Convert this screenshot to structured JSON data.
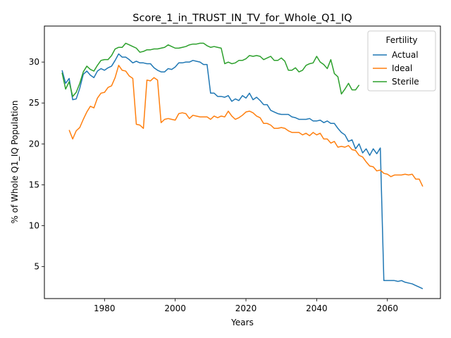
{
  "chart_data": {
    "type": "line",
    "title": "Score_1_in_TRUST_IN_TV_for_Whole_Q1_IQ",
    "xlabel": "Years",
    "ylabel": "% of Whole Q1_IQ Population",
    "xlim": [
      1963,
      2075
    ],
    "ylim": [
      1.1,
      34.4
    ],
    "xticks": [
      1980,
      2000,
      2020,
      2040,
      2060
    ],
    "yticks": [
      5,
      10,
      15,
      20,
      25,
      30
    ],
    "grid": false,
    "legend": {
      "title": "Fertility",
      "placement": "upper right"
    },
    "series": [
      {
        "name": "Actual",
        "color": "#1f77b4",
        "x": [
          1968,
          1969,
          1970,
          1971,
          1972,
          1973,
          1974,
          1975,
          1976,
          1977,
          1978,
          1979,
          1980,
          1981,
          1982,
          1983,
          1984,
          1985,
          1986,
          1987,
          1988,
          1989,
          1990,
          1991,
          1992,
          1993,
          1994,
          1995,
          1996,
          1997,
          1998,
          1999,
          2000,
          2001,
          2002,
          2003,
          2004,
          2005,
          2006,
          2007,
          2008,
          2009,
          2010,
          2011,
          2012,
          2013,
          2014,
          2015,
          2016,
          2017,
          2018,
          2019,
          2020,
          2021,
          2022,
          2023,
          2024,
          2025,
          2026,
          2027,
          2028,
          2029,
          2030,
          2031,
          2032,
          2033,
          2034,
          2035,
          2036,
          2037,
          2038,
          2039,
          2040,
          2041,
          2042,
          2043,
          2044,
          2045,
          2046,
          2047,
          2048,
          2049,
          2050,
          2051,
          2052,
          2053,
          2054,
          2055,
          2056,
          2057,
          2058,
          2059,
          2060,
          2061,
          2062,
          2063,
          2064,
          2065,
          2066,
          2067,
          2068,
          2069,
          2070
        ],
        "y": [
          29.0,
          27.4,
          28.0,
          25.4,
          25.5,
          26.8,
          28.5,
          28.9,
          28.4,
          28.1,
          28.9,
          29.2,
          29.0,
          29.3,
          29.5,
          30.2,
          31.0,
          30.6,
          30.6,
          30.3,
          29.9,
          30.1,
          29.9,
          29.9,
          29.8,
          29.8,
          29.3,
          29.0,
          28.8,
          28.8,
          29.2,
          29.1,
          29.4,
          29.9,
          29.9,
          30.0,
          30.0,
          30.2,
          30.1,
          30.0,
          29.7,
          29.7,
          26.2,
          26.2,
          25.8,
          25.8,
          25.7,
          25.9,
          25.2,
          25.5,
          25.3,
          25.9,
          25.6,
          26.2,
          25.4,
          25.7,
          25.3,
          24.8,
          24.8,
          24.1,
          23.9,
          23.7,
          23.6,
          23.6,
          23.6,
          23.3,
          23.2,
          23.0,
          23.0,
          23.0,
          23.1,
          22.8,
          22.8,
          22.9,
          22.6,
          22.8,
          22.5,
          22.5,
          21.9,
          21.4,
          21.1,
          20.3,
          20.5,
          19.4,
          20.0,
          18.9,
          19.4,
          18.6,
          19.4,
          18.8,
          19.5,
          3.3,
          3.3,
          3.3,
          3.3,
          3.2,
          3.3,
          3.1,
          3.0,
          2.9,
          2.7,
          2.5,
          2.3
        ]
      },
      {
        "name": "Ideal",
        "color": "#ff7f0e",
        "x": [
          1970,
          1971,
          1972,
          1973,
          1974,
          1975,
          1976,
          1977,
          1978,
          1979,
          1980,
          1981,
          1982,
          1983,
          1984,
          1985,
          1986,
          1987,
          1988,
          1989,
          1990,
          1991,
          1992,
          1993,
          1994,
          1995,
          1996,
          1997,
          1998,
          1999,
          2000,
          2001,
          2002,
          2003,
          2004,
          2005,
          2006,
          2007,
          2008,
          2009,
          2010,
          2011,
          2012,
          2013,
          2014,
          2015,
          2016,
          2017,
          2018,
          2019,
          2020,
          2021,
          2022,
          2023,
          2024,
          2025,
          2026,
          2027,
          2028,
          2029,
          2030,
          2031,
          2032,
          2033,
          2034,
          2035,
          2036,
          2037,
          2038,
          2039,
          2040,
          2041,
          2042,
          2043,
          2044,
          2045,
          2046,
          2047,
          2048,
          2049,
          2050,
          2051,
          2052,
          2053,
          2054,
          2055,
          2056,
          2057,
          2058,
          2059,
          2060,
          2061,
          2062,
          2063,
          2064,
          2065,
          2066,
          2067,
          2068,
          2069,
          2070
        ],
        "y": [
          21.7,
          20.6,
          21.6,
          22.0,
          23.0,
          23.9,
          24.6,
          24.4,
          25.6,
          26.2,
          26.3,
          26.9,
          27.1,
          28.1,
          29.6,
          29.0,
          28.9,
          28.3,
          28.0,
          22.4,
          22.3,
          21.9,
          27.8,
          27.7,
          28.1,
          27.8,
          22.6,
          23.0,
          23.1,
          23.0,
          22.9,
          23.7,
          23.8,
          23.7,
          23.1,
          23.5,
          23.4,
          23.3,
          23.3,
          23.3,
          23.0,
          23.4,
          23.2,
          23.4,
          23.3,
          24.0,
          23.4,
          23.0,
          23.2,
          23.5,
          23.9,
          24.0,
          23.8,
          23.4,
          23.2,
          22.5,
          22.5,
          22.3,
          21.9,
          21.9,
          22.0,
          21.9,
          21.6,
          21.4,
          21.4,
          21.4,
          21.1,
          21.3,
          21.0,
          21.4,
          21.1,
          21.3,
          20.6,
          20.6,
          20.1,
          20.3,
          19.6,
          19.7,
          19.6,
          19.8,
          19.3,
          19.2,
          18.6,
          18.4,
          17.8,
          17.3,
          17.2,
          16.7,
          16.8,
          16.4,
          16.3,
          16.0,
          16.2,
          16.2,
          16.2,
          16.3,
          16.2,
          16.3,
          15.7,
          15.7,
          14.8
        ]
      },
      {
        "name": "Sterile",
        "color": "#2ca02c",
        "x": [
          1968,
          1969,
          1970,
          1971,
          1972,
          1973,
          1974,
          1975,
          1976,
          1977,
          1978,
          1979,
          1980,
          1981,
          1982,
          1983,
          1984,
          1985,
          1986,
          1987,
          1988,
          1989,
          1990,
          1991,
          1992,
          1993,
          1994,
          1995,
          1996,
          1997,
          1998,
          1999,
          2000,
          2001,
          2002,
          2003,
          2004,
          2005,
          2006,
          2007,
          2008,
          2009,
          2010,
          2011,
          2012,
          2013,
          2014,
          2015,
          2016,
          2017,
          2018,
          2019,
          2020,
          2021,
          2022,
          2023,
          2024,
          2025,
          2026,
          2027,
          2028,
          2029,
          2030,
          2031,
          2032,
          2033,
          2034,
          2035,
          2036,
          2037,
          2038,
          2039,
          2040,
          2041,
          2042,
          2043,
          2044,
          2045,
          2046,
          2047,
          2048,
          2049,
          2050,
          2051,
          2052
        ],
        "y": [
          28.7,
          26.7,
          27.6,
          25.8,
          26.3,
          27.4,
          28.8,
          29.5,
          29.1,
          28.9,
          29.6,
          30.2,
          30.3,
          30.3,
          30.8,
          31.6,
          31.8,
          31.8,
          32.3,
          32.1,
          31.9,
          31.7,
          31.2,
          31.3,
          31.5,
          31.5,
          31.6,
          31.6,
          31.7,
          31.8,
          32.1,
          31.9,
          31.7,
          31.7,
          31.8,
          31.9,
          32.1,
          32.2,
          32.2,
          32.3,
          32.3,
          32.0,
          31.8,
          31.9,
          31.8,
          31.7,
          29.8,
          30.0,
          29.8,
          29.9,
          30.2,
          30.2,
          30.4,
          30.8,
          30.7,
          30.8,
          30.7,
          30.3,
          30.5,
          30.7,
          30.2,
          30.2,
          30.5,
          30.1,
          29.0,
          29.0,
          29.3,
          28.8,
          29.0,
          29.6,
          29.8,
          29.9,
          30.7,
          30.0,
          29.7,
          29.2,
          30.3,
          28.6,
          28.2,
          26.1,
          26.7,
          27.4,
          26.6,
          26.6,
          27.2
        ]
      }
    ]
  }
}
